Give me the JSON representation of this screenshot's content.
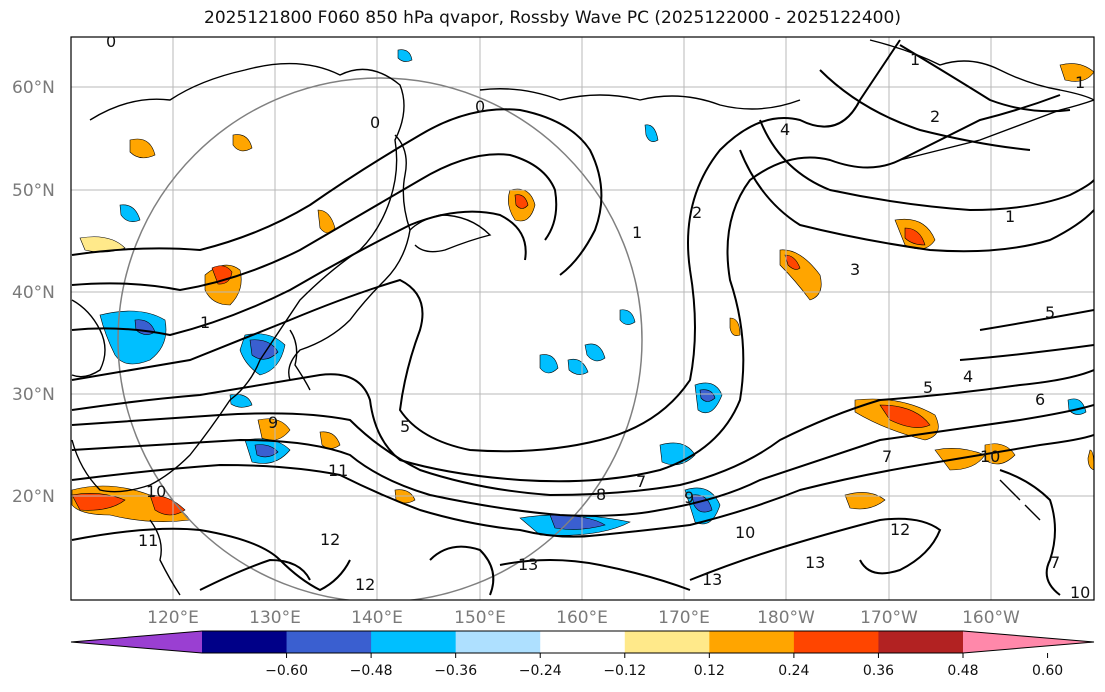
{
  "title": "2025121800 F060 850 hPa qvapor, Rossby Wave PC (2025122000 - 2025122400)",
  "latitude_labels": [
    "60°N",
    "50°N",
    "40°N",
    "30°N",
    "20°N"
  ],
  "longitude_labels": [
    "120°E",
    "130°E",
    "140°E",
    "150°E",
    "160°E",
    "170°E",
    "180°W",
    "170°W",
    "160°W"
  ],
  "colorbar": {
    "tick_labels": [
      "−0.60",
      "−0.48",
      "−0.36",
      "−0.24",
      "−0.12",
      "0.12",
      "0.24",
      "0.36",
      "0.48",
      "0.60"
    ],
    "colors": [
      "#9a3fd2",
      "#000088",
      "#3a5fd0",
      "#00bfff",
      "#aee0ff",
      "#ffffff",
      "#ffe98a",
      "#ffa500",
      "#ff4500",
      "#b22222",
      "#ff88aa"
    ]
  },
  "contour_labels": [
    {
      "text": "0"
    },
    {
      "text": "0"
    },
    {
      "text": "0"
    },
    {
      "text": "1"
    },
    {
      "text": "1"
    },
    {
      "text": "1"
    },
    {
      "text": "1"
    },
    {
      "text": "2"
    },
    {
      "text": "2"
    },
    {
      "text": "3"
    },
    {
      "text": "4"
    },
    {
      "text": "4"
    },
    {
      "text": "5"
    },
    {
      "text": "5"
    },
    {
      "text": "5"
    },
    {
      "text": "6"
    },
    {
      "text": "7"
    },
    {
      "text": "7"
    },
    {
      "text": "8"
    },
    {
      "text": "9"
    },
    {
      "text": "9"
    },
    {
      "text": "10"
    },
    {
      "text": "10"
    },
    {
      "text": "10"
    },
    {
      "text": "10"
    },
    {
      "text": "11"
    },
    {
      "text": "11"
    },
    {
      "text": "12"
    },
    {
      "text": "12"
    },
    {
      "text": "13"
    },
    {
      "text": "13"
    },
    {
      "text": "13"
    },
    {
      "text": "1"
    },
    {
      "text": "12"
    },
    {
      "text": "7"
    }
  ]
}
